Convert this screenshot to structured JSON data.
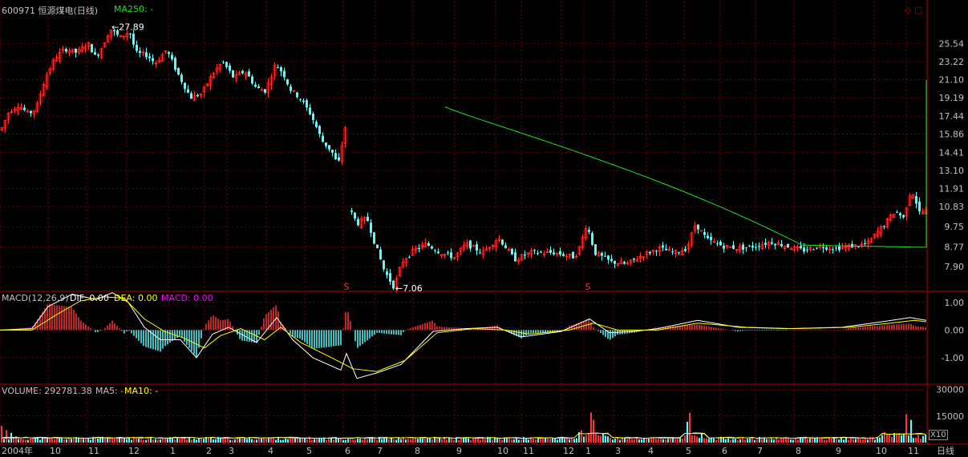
{
  "header": {
    "stock_title": "600971 恒源煤电(日线)",
    "ma_label": "MA250: -"
  },
  "macd_header": {
    "name": "MACD(12,26,9)",
    "dif": "DIF: 0.00",
    "dea": "DEA: 0.00",
    "macd": "MACD: 0.00"
  },
  "volume_header": {
    "volume": "VOLUME: 292781.38",
    "ma5": "MA5: -",
    "ma10": "MA10: -"
  },
  "badges": {
    "x10": "X10",
    "period": "日线"
  },
  "colors": {
    "up": "#ff3232",
    "down": "#54ffff",
    "ma": "#21e021",
    "grid": "#8b0000",
    "axis_text": "#c0c0c0",
    "dif": "#ffffff",
    "dea": "#ffff00",
    "macd_label": "#ff00ff"
  },
  "chart_data": [
    {
      "type": "candlestick",
      "title": "600971 恒源煤电(日线)",
      "y_ticks": [
        25.54,
        23.22,
        21.1,
        19.19,
        17.44,
        15.86,
        14.41,
        13.1,
        11.91,
        10.83,
        9.75,
        8.77,
        7.9
      ],
      "ylim": [
        7.0,
        29.5
      ],
      "scale": "log",
      "x_ticks": [
        "2004年",
        "10",
        "11",
        "12",
        "1",
        "2",
        "3",
        "4",
        "5",
        "6",
        "7",
        "8",
        "9",
        "10",
        "11",
        "12",
        "1",
        "3",
        "4",
        "5",
        "6",
        "7",
        "8",
        "9",
        "10",
        "11"
      ],
      "annotations": [
        {
          "text": "27.89",
          "value": 27.89,
          "type": "high"
        },
        {
          "text": "7.06",
          "value": 7.06,
          "type": "low"
        }
      ],
      "markers": [
        "S",
        "S"
      ],
      "ma_series": {
        "name": "MA250",
        "start_value": 18.3,
        "end_value": 8.75
      },
      "price_path": [
        [
          0,
          16.2
        ],
        [
          10,
          17.9
        ],
        [
          22,
          18.5
        ],
        [
          34,
          17.6
        ],
        [
          44,
          18.2
        ],
        [
          55,
          21.3
        ],
        [
          68,
          23.8
        ],
        [
          80,
          24.8
        ],
        [
          95,
          24.3
        ],
        [
          108,
          25.6
        ],
        [
          118,
          23.7
        ],
        [
          126,
          25.1
        ],
        [
          136,
          27.6
        ],
        [
          148,
          26.3
        ],
        [
          160,
          27.2
        ],
        [
          168,
          24.3
        ],
        [
          182,
          24.0
        ],
        [
          192,
          23.0
        ],
        [
          206,
          24.7
        ],
        [
          220,
          21.8
        ],
        [
          236,
          19.2
        ],
        [
          250,
          19.6
        ],
        [
          264,
          21.8
        ],
        [
          276,
          23.2
        ],
        [
          290,
          21.3
        ],
        [
          304,
          22.1
        ],
        [
          318,
          20.2
        ],
        [
          330,
          19.9
        ],
        [
          342,
          22.9
        ],
        [
          352,
          21.8
        ],
        [
          360,
          20.1
        ],
        [
          372,
          19.2
        ],
        [
          386,
          17.6
        ],
        [
          400,
          15.3
        ],
        [
          412,
          14.5
        ],
        [
          420,
          13.4
        ],
        [
          424,
          14.6
        ],
        [
          430,
          16.8
        ],
        [
          434,
          10.7
        ],
        [
          444,
          9.9
        ],
        [
          456,
          10.2
        ],
        [
          466,
          8.9
        ],
        [
          478,
          7.7
        ],
        [
          490,
          7.08
        ],
        [
          500,
          8.1
        ],
        [
          514,
          8.6
        ],
        [
          530,
          8.9
        ],
        [
          548,
          8.5
        ],
        [
          565,
          8.3
        ],
        [
          580,
          8.9
        ],
        [
          600,
          8.5
        ],
        [
          620,
          9.2
        ],
        [
          640,
          8.2
        ],
        [
          660,
          8.5
        ],
        [
          690,
          8.5
        ],
        [
          715,
          8.3
        ],
        [
          722,
          8.8
        ],
        [
          730,
          9.9
        ],
        [
          740,
          8.5
        ],
        [
          760,
          8.1
        ],
        [
          780,
          8.0
        ],
        [
          800,
          8.4
        ],
        [
          820,
          8.7
        ],
        [
          840,
          8.5
        ],
        [
          855,
          8.7
        ],
        [
          866,
          9.9
        ],
        [
          880,
          9.1
        ],
        [
          900,
          8.8
        ],
        [
          920,
          8.7
        ],
        [
          940,
          8.8
        ],
        [
          960,
          9.0
        ],
        [
          980,
          8.8
        ],
        [
          1000,
          8.6
        ],
        [
          1020,
          8.8
        ],
        [
          1040,
          8.7
        ],
        [
          1060,
          8.8
        ],
        [
          1080,
          8.9
        ],
        [
          1100,
          9.8
        ],
        [
          1115,
          10.6
        ],
        [
          1125,
          10.2
        ],
        [
          1135,
          11.9
        ],
        [
          1145,
          10.5
        ],
        [
          1155,
          10.6
        ]
      ]
    },
    {
      "type": "line",
      "title": "MACD(12,26,9)",
      "y_ticks": [
        1.0,
        0.0,
        -1.0
      ],
      "ylim": [
        -1.9,
        1.4
      ],
      "series": [
        {
          "name": "DIF",
          "color": "#ffffff",
          "points": [
            [
              0,
              0.0
            ],
            [
              40,
              0.05
            ],
            [
              60,
              0.85
            ],
            [
              90,
              1.3
            ],
            [
              120,
              1.1
            ],
            [
              140,
              1.35
            ],
            [
              160,
              1.0
            ],
            [
              180,
              0.1
            ],
            [
              200,
              -0.35
            ],
            [
              225,
              -0.35
            ],
            [
              245,
              -1.0
            ],
            [
              265,
              -0.15
            ],
            [
              285,
              0.1
            ],
            [
              320,
              -0.45
            ],
            [
              345,
              0.45
            ],
            [
              365,
              -0.35
            ],
            [
              390,
              -1.0
            ],
            [
              425,
              -1.45
            ],
            [
              432,
              -0.85
            ],
            [
              445,
              -1.75
            ],
            [
              470,
              -1.55
            ],
            [
              500,
              -1.25
            ],
            [
              540,
              -0.05
            ],
            [
              580,
              0.05
            ],
            [
              620,
              0.1
            ],
            [
              650,
              -0.25
            ],
            [
              700,
              -0.05
            ],
            [
              735,
              0.4
            ],
            [
              760,
              -0.1
            ],
            [
              790,
              -0.05
            ],
            [
              820,
              0.05
            ],
            [
              870,
              0.35
            ],
            [
              920,
              0.1
            ],
            [
              980,
              0.05
            ],
            [
              1050,
              0.1
            ],
            [
              1100,
              0.3
            ],
            [
              1135,
              0.45
            ],
            [
              1155,
              0.35
            ]
          ]
        },
        {
          "name": "DEA",
          "color": "#ffff00",
          "points": [
            [
              0,
              0.0
            ],
            [
              40,
              0.0
            ],
            [
              70,
              0.55
            ],
            [
              100,
              1.05
            ],
            [
              130,
              1.2
            ],
            [
              155,
              1.15
            ],
            [
              180,
              0.4
            ],
            [
              205,
              -0.05
            ],
            [
              230,
              -0.3
            ],
            [
              255,
              -0.65
            ],
            [
              275,
              -0.2
            ],
            [
              300,
              0.05
            ],
            [
              330,
              -0.35
            ],
            [
              350,
              0.1
            ],
            [
              375,
              -0.45
            ],
            [
              410,
              -0.95
            ],
            [
              440,
              -1.4
            ],
            [
              470,
              -1.5
            ],
            [
              505,
              -1.1
            ],
            [
              545,
              -0.1
            ],
            [
              590,
              0.05
            ],
            [
              630,
              0.0
            ],
            [
              660,
              -0.15
            ],
            [
              710,
              0.0
            ],
            [
              740,
              0.25
            ],
            [
              770,
              0.0
            ],
            [
              820,
              0.0
            ],
            [
              870,
              0.25
            ],
            [
              930,
              0.1
            ],
            [
              990,
              0.05
            ],
            [
              1060,
              0.1
            ],
            [
              1110,
              0.25
            ],
            [
              1140,
              0.35
            ],
            [
              1155,
              0.3
            ]
          ]
        }
      ]
    },
    {
      "type": "bar",
      "title": "VOLUME",
      "y_ticks": [
        30000,
        15000
      ],
      "ylim": [
        0,
        33000
      ],
      "unit_badge": "X10",
      "spikes": [
        [
          0,
          9500
        ],
        [
          8,
          7000
        ],
        [
          12,
          5500
        ],
        [
          20,
          3500
        ],
        [
          725,
          6000
        ],
        [
          735,
          15500
        ],
        [
          740,
          12000
        ],
        [
          855,
          11500
        ],
        [
          860,
          14000
        ],
        [
          1128,
          13500
        ],
        [
          1135,
          11000
        ]
      ],
      "base": 1500
    }
  ]
}
